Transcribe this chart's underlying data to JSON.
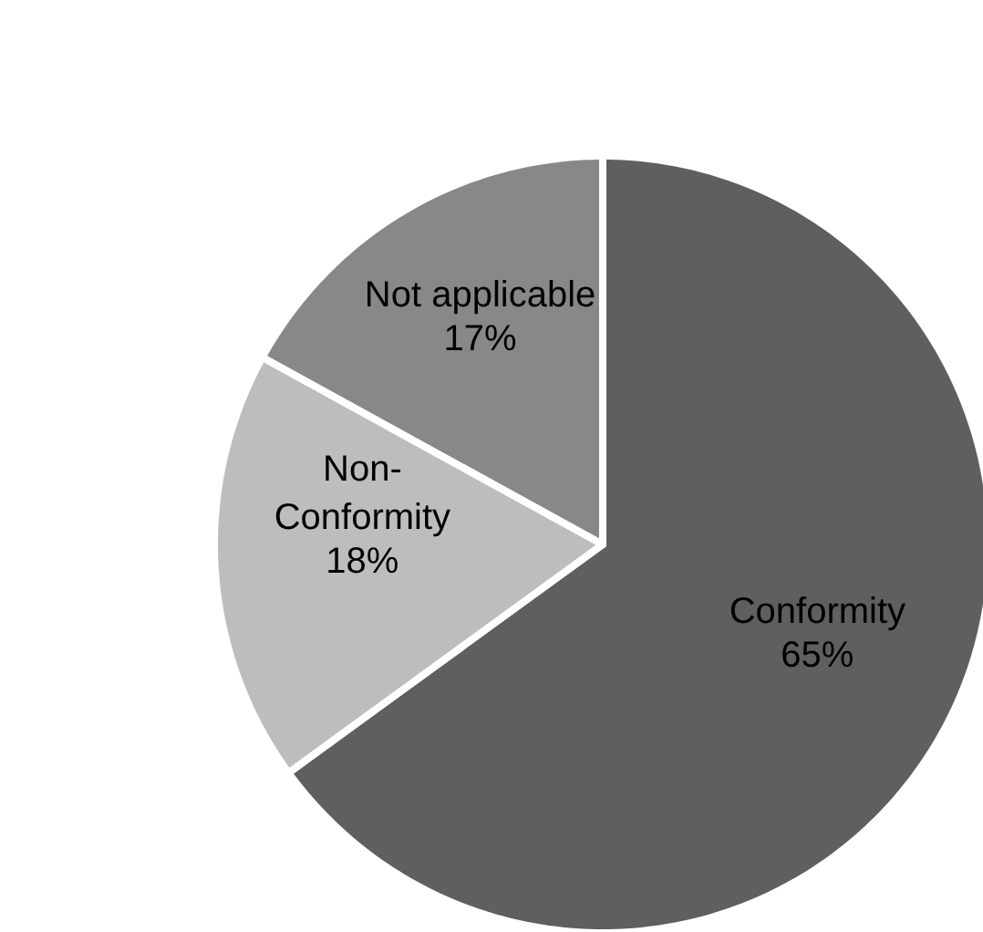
{
  "chart_data": {
    "type": "pie",
    "categories": [
      "Conformity",
      "Non-Conformity",
      "Not applicable"
    ],
    "values": [
      65,
      18,
      17
    ],
    "value_labels": [
      "65%",
      "18%",
      "17%"
    ],
    "colors": [
      "#5f5f5f",
      "#bdbdbd",
      "#888888"
    ]
  }
}
